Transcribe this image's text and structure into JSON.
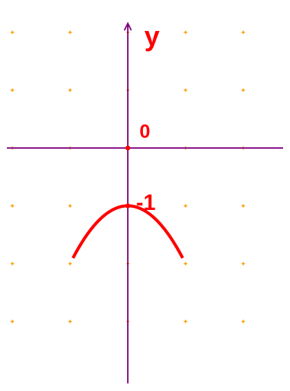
{
  "chart_data": {
    "type": "line",
    "series": [
      {
        "expression": "y = -x^2 - 1",
        "color": "#ff0000",
        "x": [
          -0.95,
          -0.8,
          -0.6,
          -0.4,
          -0.2,
          0,
          0.2,
          0.4,
          0.6,
          0.8,
          0.95
        ],
        "y": [
          -1.9025,
          -1.64,
          -1.36,
          -1.16,
          -1.04,
          -1.0,
          -1.04,
          -1.16,
          -1.36,
          -1.64,
          -1.9025
        ]
      }
    ],
    "xlim": [
      -2.0,
      2.0
    ],
    "ylim": [
      -2.0,
      2.0
    ],
    "ylabel": "y",
    "annotations": [
      {
        "text": "0",
        "x": 0,
        "y": 0
      },
      {
        "text": "-1",
        "x": 0,
        "y": -1
      }
    ],
    "grid": "dots",
    "grid_step": 1,
    "colors": {
      "axes": "#800080",
      "grid_dots": "#ff9900",
      "curve": "#ff0000",
      "labels": "#ff0000"
    }
  }
}
